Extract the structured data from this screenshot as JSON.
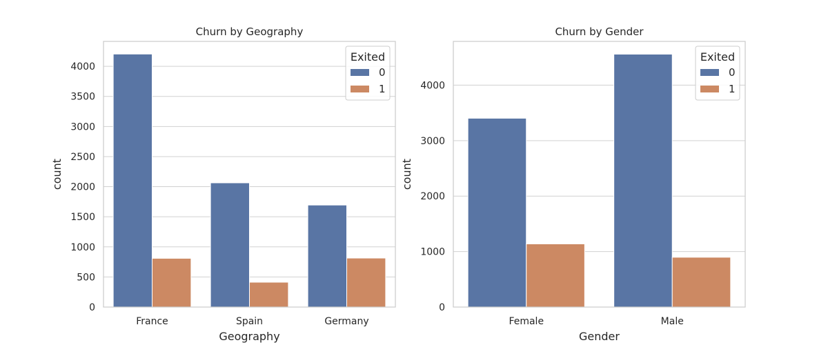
{
  "chart_data": [
    {
      "type": "bar",
      "title": "Churn by Geography",
      "xlabel": "Geography",
      "ylabel": "count",
      "categories": [
        "France",
        "Spain",
        "Germany"
      ],
      "ylim": [
        0,
        4414
      ],
      "yticks": [
        0,
        500,
        1000,
        1500,
        2000,
        2500,
        3000,
        3500,
        4000
      ],
      "grid": true,
      "legend": {
        "title": "Exited",
        "placement": "top-right"
      },
      "series": [
        {
          "name": "0",
          "color": "#5975a4",
          "values": [
            4204,
            2064,
            1695
          ]
        },
        {
          "name": "1",
          "color": "#cc8963",
          "values": [
            810,
            413,
            814
          ]
        }
      ]
    },
    {
      "type": "bar",
      "title": "Churn by Gender",
      "xlabel": "Gender",
      "ylabel": "count",
      "categories": [
        "Female",
        "Male"
      ],
      "ylim": [
        0,
        4789
      ],
      "yticks": [
        0,
        1000,
        2000,
        3000,
        4000
      ],
      "grid": true,
      "legend": {
        "title": "Exited",
        "placement": "top-right"
      },
      "series": [
        {
          "name": "0",
          "color": "#5975a4",
          "values": [
            3404,
            4559
          ]
        },
        {
          "name": "1",
          "color": "#cc8963",
          "values": [
            1139,
            898
          ]
        }
      ]
    }
  ]
}
